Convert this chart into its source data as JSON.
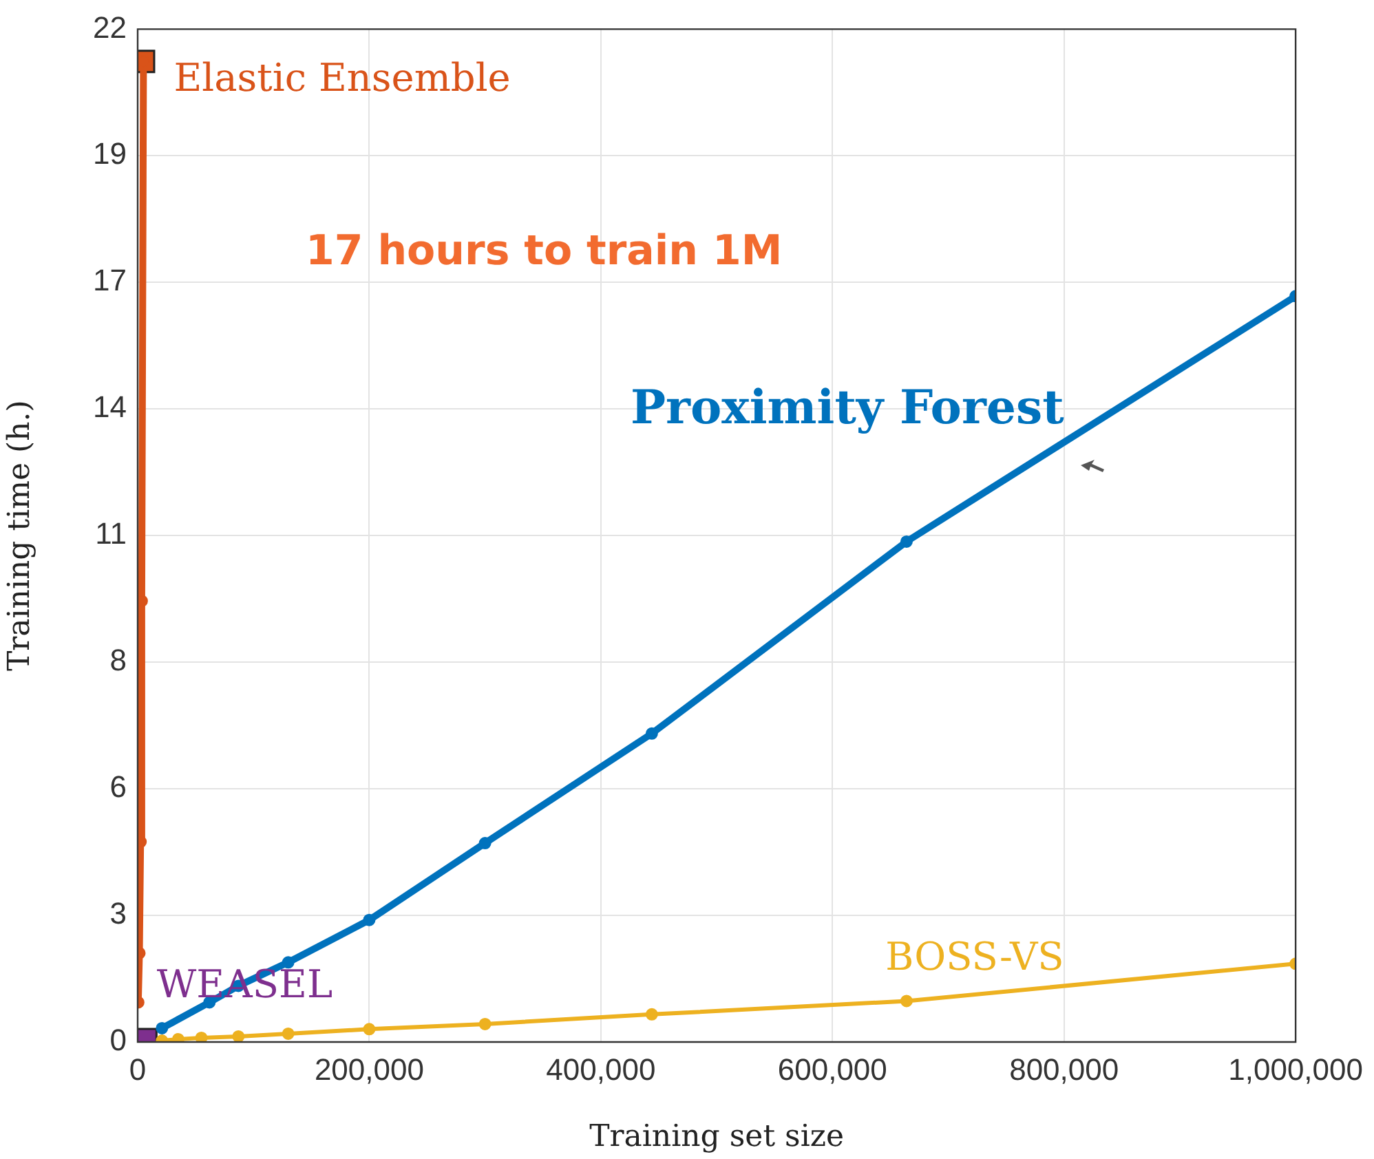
{
  "chart_data": {
    "type": "line",
    "xlabel": "Training set size",
    "ylabel": "Training time (h.)",
    "xlim": [
      0,
      1000000
    ],
    "xticks": [
      0,
      {
        "value": 200000,
        "label": "200,000"
      },
      {
        "value": 400000,
        "label": "400,000"
      },
      {
        "value": 600000,
        "label": "600,000"
      },
      {
        "value": 800000,
        "label": "800,000"
      },
      {
        "value": 1000000,
        "label": "1,000,000"
      }
    ],
    "ylim": [
      0,
      22
    ],
    "yticks": [
      0,
      {
        "value": 2.75,
        "label": "3"
      },
      {
        "value": 5.5,
        "label": "6"
      },
      {
        "value": 8.25,
        "label": "8"
      },
      11,
      {
        "value": 13.75,
        "label": "14"
      },
      {
        "value": 16.5,
        "label": "17"
      },
      {
        "value": 19.25,
        "label": "19"
      },
      22
    ],
    "grid": true,
    "legend": false,
    "annotations": [
      "17 hours to train 1M"
    ],
    "series": [
      {
        "name": "Elastic Ensemble",
        "marker": "circle",
        "color": "#d95319",
        "x": [
          500,
          1500,
          2500,
          3500,
          5000
        ],
        "values": [
          0.86,
          1.93,
          4.35,
          9.58,
          21.3
        ]
      },
      {
        "type": "scatter",
        "marker": "square",
        "color": "#d95319",
        "x": [
          5000
        ],
        "values": [
          21.3
        ]
      },
      {
        "name": "Proximity Forest",
        "marker": "circle",
        "color": "#0072bd",
        "x": [
          21000,
          62000,
          87000,
          130000,
          200000,
          300000,
          444000,
          664000,
          1000000
        ],
        "values": [
          0.3,
          0.86,
          1.22,
          1.73,
          2.65,
          4.32,
          6.7,
          10.87,
          16.2
        ]
      },
      {
        "name": "BOSS-VS",
        "marker": "circle",
        "color": "#edb120",
        "x": [
          21000,
          35000,
          55000,
          87000,
          130000,
          200000,
          300000,
          444000,
          664000,
          1000000
        ],
        "values": [
          0.03,
          0.06,
          0.09,
          0.12,
          0.18,
          0.28,
          0.39,
          0.6,
          0.89,
          1.7
        ]
      },
      {
        "name": "WEASEL",
        "type": "scatter",
        "marker": "square",
        "color": "#7e2f8e",
        "x": [
          7000
        ],
        "values": [
          0.05
        ]
      }
    ]
  }
}
